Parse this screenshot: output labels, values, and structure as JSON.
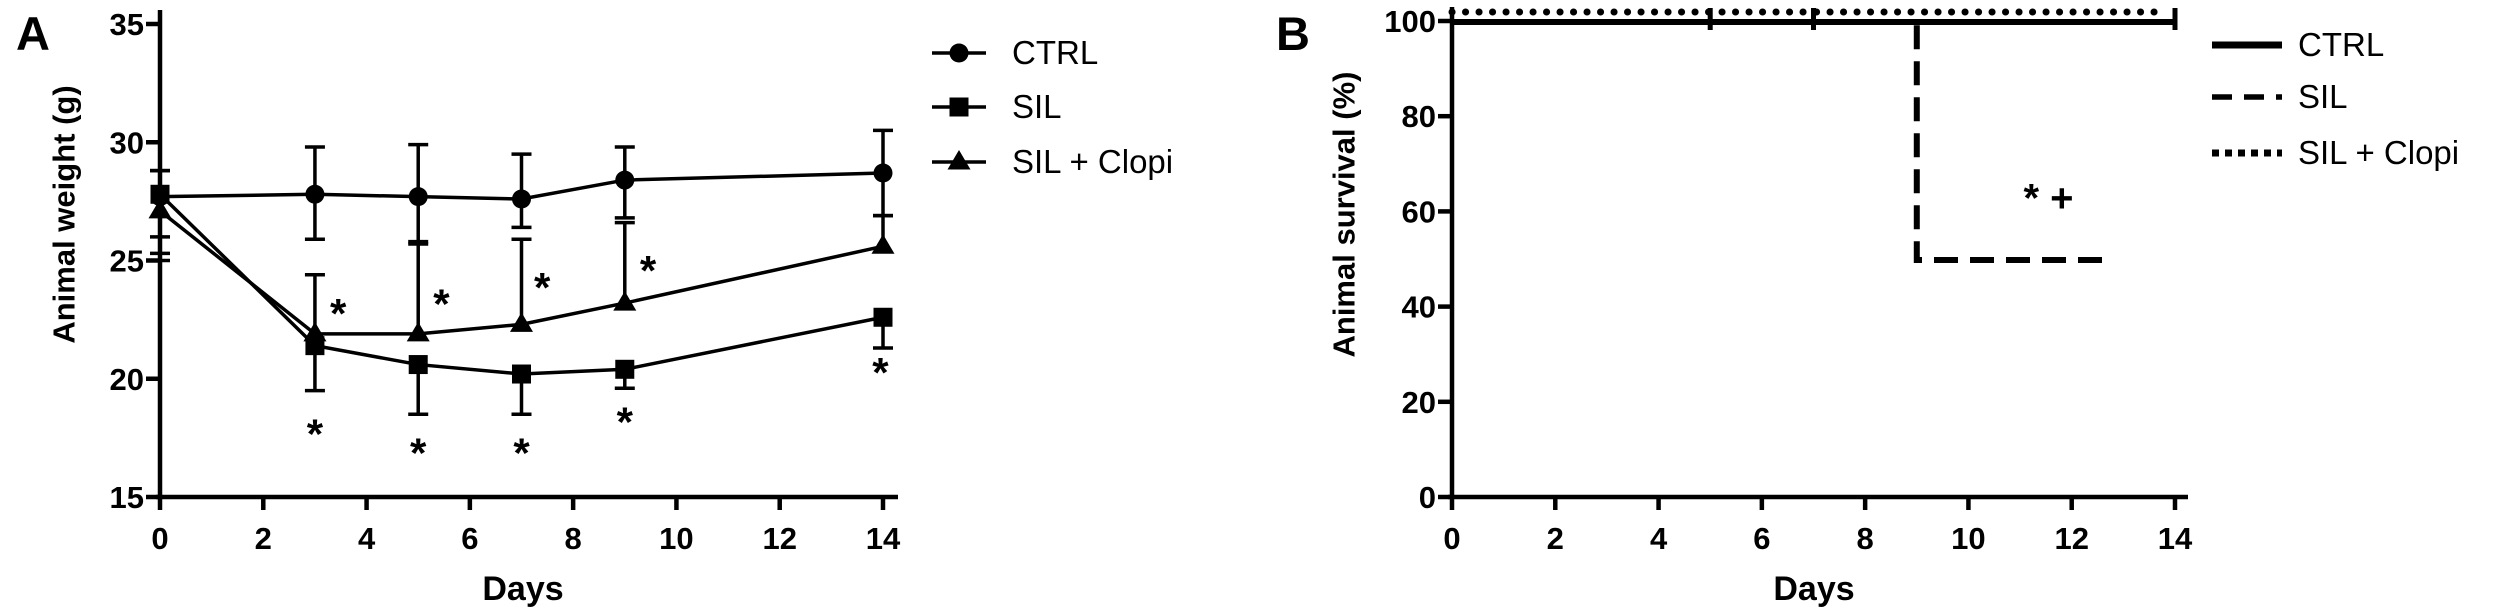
{
  "colors": {
    "ink": "#000000",
    "background": "#ffffff"
  },
  "chart_data": [
    {
      "panel": "A",
      "type": "line",
      "title": "",
      "xlabel": "Days",
      "ylabel": "Animal weight (g)",
      "xlim": [
        0,
        14
      ],
      "ylim": [
        15,
        35
      ],
      "xticks": [
        0,
        2,
        4,
        6,
        8,
        10,
        12,
        14
      ],
      "yticks": [
        15,
        20,
        25,
        30,
        35
      ],
      "grid": false,
      "legend_position": "top-right-outside",
      "x": [
        0,
        3,
        5,
        7,
        9,
        14
      ],
      "series": [
        {
          "name": "CTRL",
          "marker": "circle",
          "line": "solid",
          "values": [
            27.7,
            27.8,
            27.7,
            27.6,
            28.4,
            28.7
          ],
          "err_up": [
            1.1,
            2.0,
            2.2,
            1.9,
            1.4,
            1.8
          ],
          "err_down": [
            1.7,
            1.9,
            2.0,
            1.2,
            1.6,
            1.8
          ]
        },
        {
          "name": "SIL",
          "marker": "square",
          "line": "solid",
          "values": [
            27.8,
            21.4,
            20.6,
            20.2,
            20.4,
            22.6
          ],
          "err_up": [
            1.0,
            0,
            0,
            0,
            0,
            0
          ],
          "err_down": [
            2.5,
            1.9,
            2.1,
            1.7,
            0.8,
            1.3
          ]
        },
        {
          "name": "SIL + Clopi",
          "marker": "triangle",
          "line": "solid",
          "values": [
            27.1,
            21.9,
            21.9,
            22.3,
            23.2,
            25.6
          ],
          "err_up": [
            0,
            2.5,
            3.9,
            3.6,
            3.4,
            1.3
          ],
          "err_down": [
            2.1,
            0,
            0,
            0,
            0,
            0
          ]
        }
      ],
      "annotations": [
        {
          "text": "*",
          "x": 3.45,
          "y": 23.0
        },
        {
          "text": "*",
          "x": 5.45,
          "y": 23.4
        },
        {
          "text": "*",
          "x": 7.4,
          "y": 24.1
        },
        {
          "text": "*",
          "x": 9.45,
          "y": 24.8
        },
        {
          "text": "*",
          "x": 3.0,
          "y": 17.9
        },
        {
          "text": "*",
          "x": 5.0,
          "y": 17.1
        },
        {
          "text": "*",
          "x": 7.0,
          "y": 17.1
        },
        {
          "text": "*",
          "x": 9.0,
          "y": 18.4
        },
        {
          "text": "*",
          "x": 13.95,
          "y": 20.5
        }
      ]
    },
    {
      "panel": "B",
      "type": "step-line",
      "title": "",
      "xlabel": "Days",
      "ylabel": "Animal survival (%)",
      "xlim": [
        0,
        14
      ],
      "ylim": [
        0,
        100
      ],
      "xticks": [
        0,
        2,
        4,
        6,
        8,
        10,
        12,
        14
      ],
      "yticks": [
        0,
        20,
        40,
        60,
        80,
        100
      ],
      "grid": false,
      "legend_position": "top-right-outside",
      "series": [
        {
          "name": "CTRL",
          "style": "solid",
          "points": [
            [
              0,
              100
            ],
            [
              14,
              100
            ]
          ],
          "end_tick": true
        },
        {
          "name": "SIL",
          "style": "dashed",
          "points": [
            [
              0,
              100
            ],
            [
              9,
              100
            ],
            [
              9,
              50
            ],
            [
              12.75,
              50
            ]
          ]
        },
        {
          "name": "SIL + Clopi",
          "style": "dotted",
          "points": [
            [
              0,
              100
            ],
            [
              13.6,
              100
            ]
          ]
        }
      ],
      "curve_tick_days": [
        5,
        7
      ],
      "annotations": [
        {
          "text": "* +",
          "x": 11.55,
          "y": 64
        }
      ]
    }
  ]
}
